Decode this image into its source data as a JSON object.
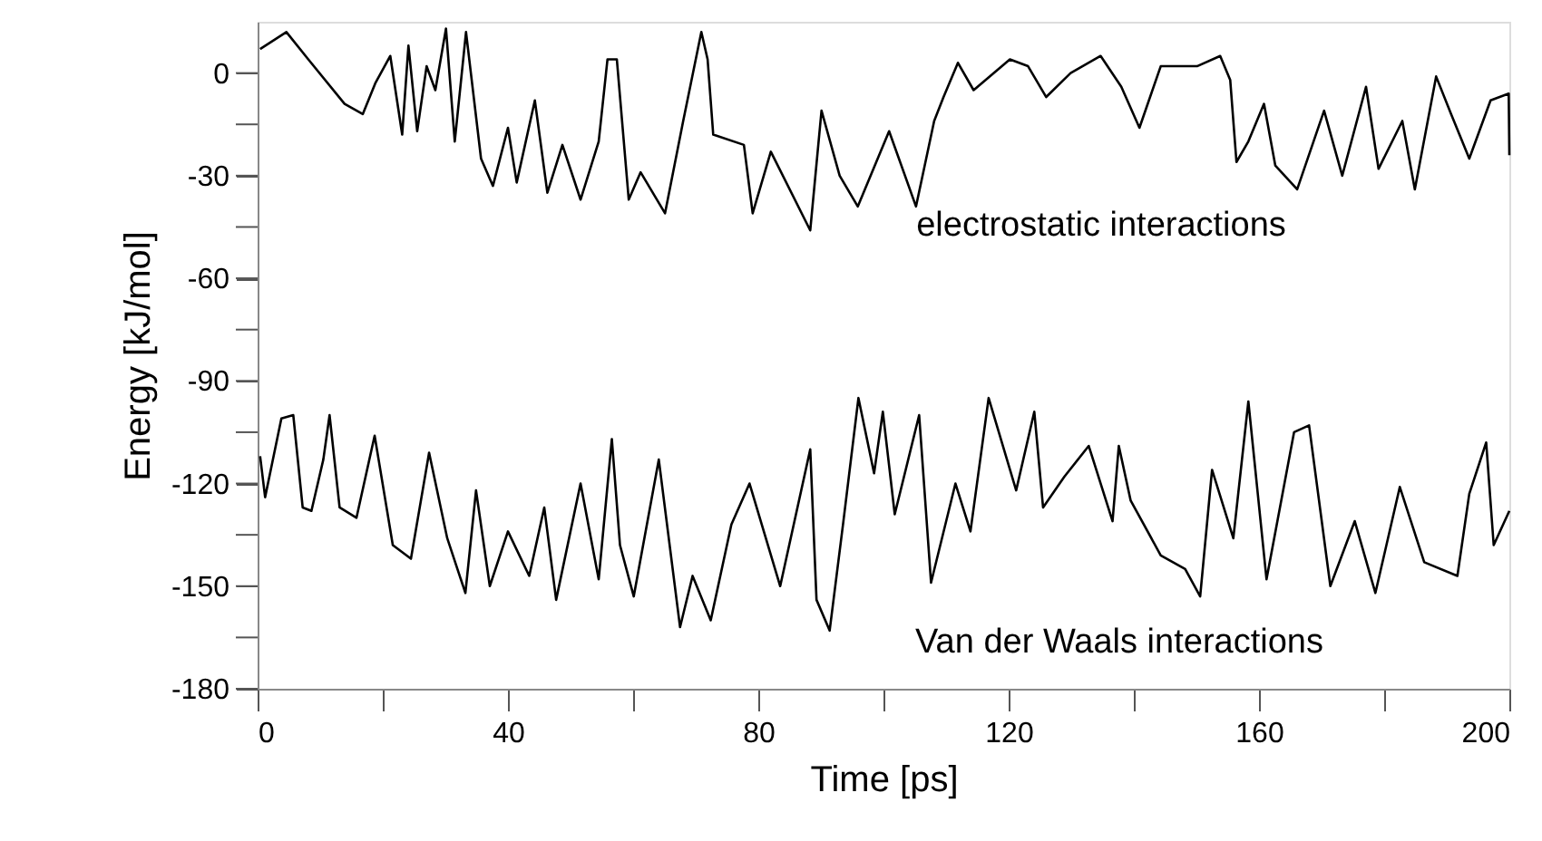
{
  "chart_data": {
    "type": "line",
    "xlabel": "Time [ps]",
    "ylabel": "Energy  [kJ/mol]",
    "xlim": [
      0,
      200
    ],
    "ylim": [
      -180,
      15
    ],
    "xticks": [
      0,
      {
        "value": 20,
        "label": null
      },
      40,
      {
        "value": 60,
        "label": null
      },
      80,
      {
        "value": 100,
        "label": null
      },
      120,
      {
        "value": 140,
        "label": null
      },
      160,
      {
        "value": 180,
        "label": null
      },
      200
    ],
    "yticks": [
      0,
      {
        "value": -15,
        "label": null
      },
      -30,
      {
        "value": -45,
        "label": null
      },
      -60,
      {
        "value": -75,
        "label": null
      },
      -90,
      {
        "value": -105,
        "label": null
      },
      -120,
      {
        "value": -135,
        "label": null
      },
      -150,
      {
        "value": -165,
        "label": null
      },
      -180
    ],
    "grid": false,
    "marker": "none",
    "line_style": "solid",
    "series": [
      {
        "color": "#000000",
        "x": [
          0.4,
          4.6,
          8.1,
          13.9,
          16.8,
          18.8,
          21.2,
          23.1,
          24.1,
          25.5,
          27,
          28.4,
          30.1,
          31.5,
          33.3,
          35.7,
          37.6,
          40,
          41.4,
          44.3,
          46.3,
          48.7,
          51.6,
          54.5,
          55.9,
          57.4,
          59.3,
          61.2,
          65.1,
          68,
          70.9,
          71.9,
          72.8,
          77.7,
          79.1,
          82,
          88.3,
          90.1,
          93,
          95.9,
          100.9,
          105.2,
          108.1,
          109.6,
          111.9,
          114.4,
          120.2,
          123.1,
          126,
          129.9,
          134.7,
          138,
          140.9,
          144.3,
          150.1,
          153.8,
          155.4,
          156.4,
          158.3,
          160.8,
          162.6,
          166.1,
          170.4,
          173.3,
          177.1,
          179.1,
          182.9,
          184.9,
          188.3,
          190.7,
          193.6,
          197,
          199.9,
          200
        ],
        "values": [
          7,
          12,
          4,
          -9,
          -12,
          -3,
          5,
          -18,
          8,
          -17,
          2,
          -5,
          13,
          -20,
          12,
          -25,
          -33,
          -16,
          -32,
          -8,
          -35,
          -21,
          -37,
          -20,
          4,
          4,
          -37,
          -29,
          -41,
          -14,
          12,
          4,
          -18,
          -21,
          -41,
          -23,
          -46,
          -11,
          -30,
          -39,
          -17,
          -39,
          -14,
          -7,
          3,
          -5,
          4,
          2,
          -7,
          0,
          5,
          -4,
          -16,
          2,
          2,
          5,
          -2,
          -26,
          -20,
          -9,
          -27,
          -34,
          -11,
          -30,
          -4,
          -28,
          -14,
          -34,
          -1,
          -12,
          -25,
          -8,
          -6,
          -24
        ]
      },
      {
        "color": "#000000",
        "x": [
          0.4,
          1.2,
          3.8,
          5.7,
          7.2,
          8.6,
          10.5,
          11.5,
          13.1,
          15.8,
          18.7,
          21.6,
          24.5,
          27.4,
          30.3,
          33.2,
          34.9,
          37.1,
          40,
          43.4,
          45.8,
          47.7,
          51.6,
          54.5,
          56.6,
          57.9,
          60.1,
          64.1,
          67.5,
          69.5,
          72.4,
          75.7,
          78.6,
          83.5,
          88.3,
          89.3,
          91.4,
          93.6,
          96,
          98.5,
          99.9,
          101.8,
          105.7,
          107.6,
          111.5,
          113.9,
          116.8,
          121.2,
          124.1,
          125.5,
          128.9,
          132.8,
          136.6,
          137.6,
          139.5,
          144.3,
          148.2,
          150.6,
          152.5,
          155.9,
          158.3,
          161.2,
          165.6,
          168,
          171.4,
          175.3,
          178.6,
          182.5,
          186.4,
          191.7,
          193.6,
          196.3,
          197.5,
          200
        ],
        "values": [
          -112,
          -124,
          -101,
          -100,
          -127,
          -128,
          -113,
          -100,
          -127,
          -130,
          -106,
          -138,
          -142,
          -111,
          -136,
          -152,
          -122,
          -150,
          -134,
          -147,
          -127,
          -154,
          -120,
          -148,
          -107,
          -138,
          -153,
          -113,
          -162,
          -147,
          -160,
          -132,
          -120,
          -150,
          -110,
          -154,
          -163,
          -131,
          -95,
          -117,
          -99,
          -129,
          -100,
          -149,
          -120,
          -134,
          -95,
          -122,
          -99,
          -127,
          -118,
          -109,
          -131,
          -109,
          -125,
          -141,
          -145,
          -153,
          -116,
          -136,
          -96,
          -148,
          -105,
          -103,
          -150,
          -131,
          -152,
          -121,
          -143,
          -147,
          -123,
          -108,
          -138,
          -128
        ]
      }
    ],
    "annotations": [
      "electrostatic interactions",
      "Van der Waals interactions"
    ]
  }
}
